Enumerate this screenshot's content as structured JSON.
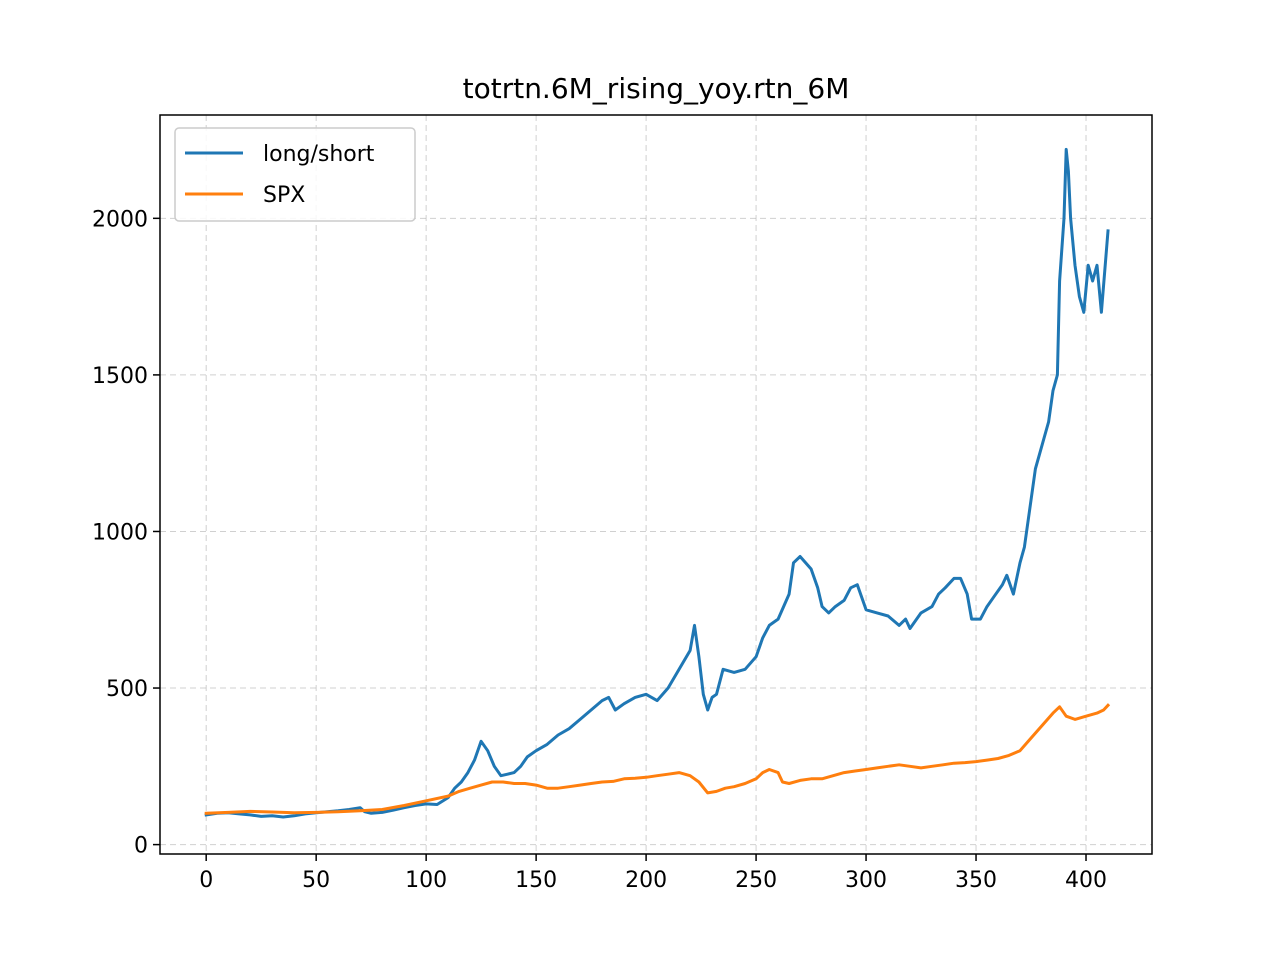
{
  "chart_data": {
    "type": "line",
    "title": "totrtn.6M_rising_yoy.rtn_6M",
    "xlabel": "",
    "ylabel": "",
    "xlim": [
      -21,
      430
    ],
    "ylim": [
      -30,
      2330
    ],
    "xticks": [
      0,
      50,
      100,
      150,
      200,
      250,
      300,
      350,
      400
    ],
    "xtick_labels": [
      "0",
      "50",
      "100",
      "150",
      "200",
      "250",
      "300",
      "350",
      "400"
    ],
    "yticks": [
      0,
      500,
      1000,
      1500,
      2000
    ],
    "ytick_labels": [
      "0",
      "500",
      "1000",
      "1500",
      "2000"
    ],
    "grid": true,
    "legend_position": "top-left",
    "series": [
      {
        "name": "long/short",
        "color": "#1f77b4",
        "points": [
          [
            0,
            95
          ],
          [
            5,
            100
          ],
          [
            10,
            102
          ],
          [
            15,
            98
          ],
          [
            20,
            95
          ],
          [
            25,
            90
          ],
          [
            30,
            92
          ],
          [
            35,
            88
          ],
          [
            40,
            92
          ],
          [
            45,
            98
          ],
          [
            50,
            102
          ],
          [
            55,
            105
          ],
          [
            60,
            108
          ],
          [
            65,
            112
          ],
          [
            70,
            118
          ],
          [
            72,
            105
          ],
          [
            75,
            100
          ],
          [
            80,
            103
          ],
          [
            85,
            110
          ],
          [
            90,
            118
          ],
          [
            95,
            125
          ],
          [
            100,
            130
          ],
          [
            105,
            128
          ],
          [
            110,
            150
          ],
          [
            113,
            180
          ],
          [
            116,
            200
          ],
          [
            119,
            230
          ],
          [
            122,
            270
          ],
          [
            125,
            330
          ],
          [
            128,
            300
          ],
          [
            131,
            250
          ],
          [
            134,
            220
          ],
          [
            137,
            225
          ],
          [
            140,
            230
          ],
          [
            143,
            250
          ],
          [
            146,
            280
          ],
          [
            150,
            300
          ],
          [
            155,
            320
          ],
          [
            160,
            350
          ],
          [
            165,
            370
          ],
          [
            170,
            400
          ],
          [
            175,
            430
          ],
          [
            180,
            460
          ],
          [
            183,
            470
          ],
          [
            186,
            430
          ],
          [
            190,
            450
          ],
          [
            195,
            470
          ],
          [
            200,
            480
          ],
          [
            205,
            460
          ],
          [
            210,
            500
          ],
          [
            215,
            560
          ],
          [
            220,
            620
          ],
          [
            222,
            700
          ],
          [
            224,
            600
          ],
          [
            226,
            480
          ],
          [
            228,
            430
          ],
          [
            230,
            470
          ],
          [
            232,
            480
          ],
          [
            235,
            560
          ],
          [
            240,
            550
          ],
          [
            245,
            560
          ],
          [
            250,
            600
          ],
          [
            253,
            660
          ],
          [
            256,
            700
          ],
          [
            260,
            720
          ],
          [
            265,
            800
          ],
          [
            267,
            900
          ],
          [
            270,
            920
          ],
          [
            275,
            880
          ],
          [
            278,
            820
          ],
          [
            280,
            760
          ],
          [
            283,
            740
          ],
          [
            286,
            760
          ],
          [
            290,
            780
          ],
          [
            293,
            820
          ],
          [
            296,
            830
          ],
          [
            300,
            750
          ],
          [
            305,
            740
          ],
          [
            310,
            730
          ],
          [
            315,
            700
          ],
          [
            318,
            720
          ],
          [
            320,
            690
          ],
          [
            325,
            740
          ],
          [
            330,
            760
          ],
          [
            333,
            800
          ],
          [
            336,
            820
          ],
          [
            340,
            850
          ],
          [
            343,
            850
          ],
          [
            346,
            800
          ],
          [
            348,
            720
          ],
          [
            352,
            720
          ],
          [
            355,
            760
          ],
          [
            358,
            790
          ],
          [
            362,
            830
          ],
          [
            364,
            860
          ],
          [
            367,
            800
          ],
          [
            370,
            900
          ],
          [
            372,
            950
          ],
          [
            375,
            1100
          ],
          [
            377,
            1200
          ],
          [
            379,
            1250
          ],
          [
            381,
            1300
          ],
          [
            383,
            1350
          ],
          [
            385,
            1450
          ],
          [
            387,
            1500
          ],
          [
            388,
            1800
          ],
          [
            390,
            2000
          ],
          [
            391,
            2220
          ],
          [
            392,
            2150
          ],
          [
            393,
            2000
          ],
          [
            395,
            1850
          ],
          [
            397,
            1750
          ],
          [
            399,
            1700
          ],
          [
            401,
            1850
          ],
          [
            403,
            1800
          ],
          [
            405,
            1850
          ],
          [
            407,
            1700
          ],
          [
            410,
            1960
          ]
        ]
      },
      {
        "name": "SPX",
        "color": "#ff7f0e",
        "points": [
          [
            0,
            100
          ],
          [
            10,
            103
          ],
          [
            20,
            106
          ],
          [
            30,
            104
          ],
          [
            40,
            102
          ],
          [
            50,
            103
          ],
          [
            60,
            105
          ],
          [
            70,
            108
          ],
          [
            80,
            112
          ],
          [
            90,
            125
          ],
          [
            100,
            140
          ],
          [
            110,
            155
          ],
          [
            115,
            170
          ],
          [
            120,
            180
          ],
          [
            125,
            190
          ],
          [
            130,
            200
          ],
          [
            135,
            200
          ],
          [
            140,
            195
          ],
          [
            145,
            195
          ],
          [
            150,
            190
          ],
          [
            155,
            180
          ],
          [
            160,
            180
          ],
          [
            165,
            185
          ],
          [
            170,
            190
          ],
          [
            175,
            195
          ],
          [
            180,
            200
          ],
          [
            185,
            202
          ],
          [
            190,
            210
          ],
          [
            195,
            212
          ],
          [
            200,
            215
          ],
          [
            205,
            220
          ],
          [
            210,
            225
          ],
          [
            215,
            230
          ],
          [
            220,
            220
          ],
          [
            224,
            200
          ],
          [
            228,
            165
          ],
          [
            232,
            170
          ],
          [
            236,
            180
          ],
          [
            240,
            185
          ],
          [
            245,
            195
          ],
          [
            250,
            210
          ],
          [
            253,
            230
          ],
          [
            256,
            240
          ],
          [
            260,
            230
          ],
          [
            262,
            200
          ],
          [
            265,
            195
          ],
          [
            270,
            205
          ],
          [
            275,
            210
          ],
          [
            280,
            210
          ],
          [
            285,
            220
          ],
          [
            290,
            230
          ],
          [
            295,
            235
          ],
          [
            300,
            240
          ],
          [
            305,
            245
          ],
          [
            310,
            250
          ],
          [
            315,
            255
          ],
          [
            320,
            250
          ],
          [
            325,
            245
          ],
          [
            330,
            250
          ],
          [
            335,
            255
          ],
          [
            340,
            260
          ],
          [
            345,
            262
          ],
          [
            350,
            265
          ],
          [
            355,
            270
          ],
          [
            360,
            275
          ],
          [
            365,
            285
          ],
          [
            370,
            300
          ],
          [
            375,
            340
          ],
          [
            380,
            380
          ],
          [
            385,
            420
          ],
          [
            388,
            440
          ],
          [
            391,
            410
          ],
          [
            395,
            400
          ],
          [
            400,
            410
          ],
          [
            405,
            420
          ],
          [
            408,
            430
          ],
          [
            410,
            445
          ]
        ]
      }
    ]
  }
}
